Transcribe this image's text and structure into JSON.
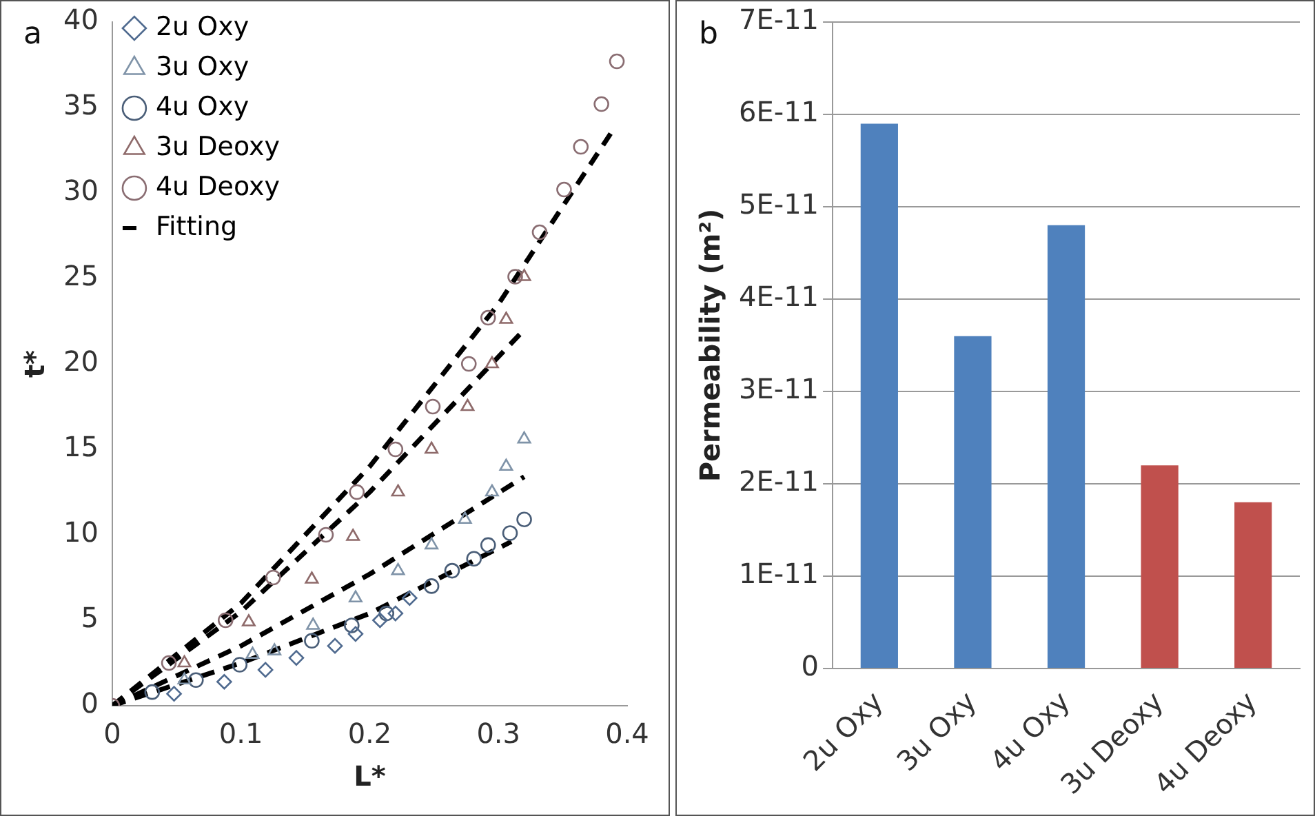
{
  "chart_data": [
    {
      "type": "scatter",
      "title": "a",
      "xlabel": "L*",
      "ylabel": "t*",
      "xlim": [
        0,
        0.4
      ],
      "xticks": [
        0,
        0.1,
        0.2,
        0.3,
        0.4
      ],
      "ylim": [
        0,
        40
      ],
      "yticks": [
        0,
        5,
        10,
        15,
        20,
        25,
        30,
        35,
        40
      ],
      "grid": false,
      "legend": "top left",
      "series": [
        {
          "name": "2u Oxy",
          "color": "#4f6a8f",
          "marker": "diamond",
          "x": [
            0.048,
            0.087,
            0.119,
            0.143,
            0.173,
            0.189,
            0.208,
            0.22,
            0.231
          ],
          "values": [
            0.7,
            1.4,
            2.1,
            2.8,
            3.5,
            4.2,
            5.0,
            5.4,
            6.3
          ]
        },
        {
          "name": "3u Oxy",
          "color": "#7f93a8",
          "marker": "triangle",
          "x": [
            0.056,
            0.109,
            0.126,
            0.156,
            0.189,
            0.222,
            0.248,
            0.274,
            0.295,
            0.306,
            0.32
          ],
          "values": [
            1.5,
            3.0,
            3.2,
            4.7,
            6.3,
            7.9,
            9.4,
            10.9,
            12.5,
            14.0,
            15.6
          ]
        },
        {
          "name": "4u Oxy",
          "color": "#4a5e78",
          "marker": "circle",
          "x": [
            0.031,
            0.065,
            0.099,
            0.155,
            0.186,
            0.213,
            0.248,
            0.264,
            0.281,
            0.292,
            0.309,
            0.32
          ],
          "values": [
            0.8,
            1.5,
            2.4,
            3.8,
            4.7,
            5.4,
            7.0,
            7.9,
            8.6,
            9.4,
            10.1,
            10.9
          ]
        },
        {
          "name": "3u Deoxy",
          "color": "#8e6a6a",
          "marker": "triangle",
          "x": [
            0.056,
            0.106,
            0.155,
            0.187,
            0.222,
            0.248,
            0.276,
            0.295,
            0.306,
            0.32
          ],
          "values": [
            2.5,
            4.9,
            7.4,
            9.9,
            12.5,
            15.0,
            17.5,
            20.0,
            22.6,
            25.1
          ]
        },
        {
          "name": "4u Deoxy",
          "color": "#8a6d72",
          "marker": "circle",
          "x": [
            0,
            0.044,
            0.088,
            0.125,
            0.166,
            0.19,
            0.22,
            0.249,
            0.277,
            0.292,
            0.313,
            0.332,
            0.351,
            0.364,
            0.38,
            0.392
          ],
          "values": [
            0,
            2.5,
            5.0,
            7.5,
            10.0,
            12.5,
            15.0,
            17.5,
            20.0,
            22.7,
            25.1,
            27.7,
            30.2,
            32.7,
            35.2,
            37.7
          ]
        },
        {
          "name": "Fitting",
          "type": "line",
          "color": "#000000",
          "marker": "none",
          "line_style": "dashed",
          "x": [
            0,
            0.1,
            0.2,
            0.3,
            0.39
          ],
          "values": [
            0,
            6,
            14,
            23.5,
            33.8
          ]
        },
        {
          "type": "line",
          "color": "#000000",
          "marker": "none",
          "line_style": "dashed",
          "x": [
            0,
            0.1,
            0.2,
            0.32
          ],
          "values": [
            0,
            5.5,
            12.5,
            22
          ]
        },
        {
          "type": "line",
          "color": "#000000",
          "marker": "none",
          "line_style": "dashed",
          "x": [
            0,
            0.1,
            0.2,
            0.32
          ],
          "values": [
            0,
            3.5,
            7.7,
            13.4
          ]
        },
        {
          "type": "line",
          "color": "#000000",
          "marker": "none",
          "line_style": "dashed",
          "x": [
            0,
            0.1,
            0.2,
            0.31
          ],
          "values": [
            0,
            2.5,
            5.4,
            9.6
          ]
        }
      ]
    },
    {
      "type": "bar",
      "title": "b",
      "ylabel": "Permeability (m²)",
      "categories": [
        "2u Oxy",
        "3u Oxy",
        "4u Oxy",
        "3u Deoxy",
        "4u Deoxy"
      ],
      "values": [
        5.9e-11,
        3.6e-11,
        4.8e-11,
        2.2e-11,
        1.8e-11
      ],
      "colors": [
        "#4f81bd",
        "#4f81bd",
        "#4f81bd",
        "#c0504d",
        "#c0504d"
      ],
      "ylim": [
        0,
        7e-11
      ],
      "yticks": [
        0,
        {
          "value": 1e-11,
          "label": "1E-11"
        },
        {
          "value": 2e-11,
          "label": "2E-11"
        },
        {
          "value": 3e-11,
          "label": "3E-11"
        },
        {
          "value": 4e-11,
          "label": "4E-11"
        },
        {
          "value": 5e-11,
          "label": "5E-11"
        },
        {
          "value": 6e-11,
          "label": "6E-11"
        },
        {
          "value": 7e-11,
          "label": "7E-11"
        }
      ],
      "grid": "y",
      "legend": false
    }
  ]
}
